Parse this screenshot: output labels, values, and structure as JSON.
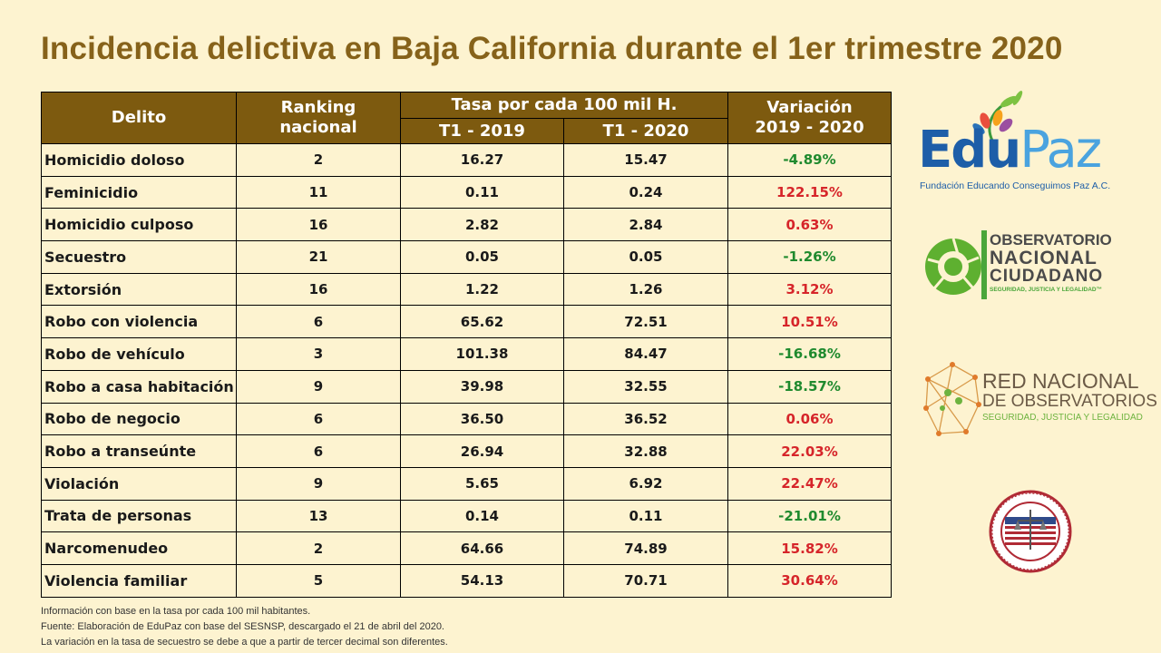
{
  "title": "Incidencia delictiva en Baja California durante el 1er trimestre 2020",
  "table": {
    "headers": {
      "delito": "Delito",
      "ranking_line1": "Ranking",
      "ranking_line2": "nacional",
      "tasa": "Tasa por cada 100 mil H.",
      "t1_2019": "T1 - 2019",
      "t1_2020": "T1 - 2020",
      "variacion_line1": "Variación",
      "variacion_line2": "2019 - 2020"
    },
    "rows": [
      {
        "delito": "Homicidio doloso",
        "ranking": "2",
        "t2019": "16.27",
        "t2020": "15.47",
        "variacion": "-4.89%"
      },
      {
        "delito": "Feminicidio",
        "ranking": "11",
        "t2019": "0.11",
        "t2020": "0.24",
        "variacion": "122.15%"
      },
      {
        "delito": "Homicidio culposo",
        "ranking": "16",
        "t2019": "2.82",
        "t2020": "2.84",
        "variacion": "0.63%"
      },
      {
        "delito": "Secuestro",
        "ranking": "21",
        "t2019": "0.05",
        "t2020": "0.05",
        "variacion": "-1.26%"
      },
      {
        "delito": "Extorsión",
        "ranking": "16",
        "t2019": "1.22",
        "t2020": "1.26",
        "variacion": "3.12%"
      },
      {
        "delito": "Robo con violencia",
        "ranking": "6",
        "t2019": "65.62",
        "t2020": "72.51",
        "variacion": "10.51%"
      },
      {
        "delito": "Robo de vehículo",
        "ranking": "3",
        "t2019": "101.38",
        "t2020": "84.47",
        "variacion": "-16.68%"
      },
      {
        "delito": "Robo a casa habitación",
        "ranking": "9",
        "t2019": "39.98",
        "t2020": "32.55",
        "variacion": "-18.57%"
      },
      {
        "delito": "Robo de negocio",
        "ranking": "6",
        "t2019": "36.50",
        "t2020": "36.52",
        "variacion": "0.06%"
      },
      {
        "delito": "Robo a transeúnte",
        "ranking": "6",
        "t2019": "26.94",
        "t2020": "32.88",
        "variacion": "22.03%"
      },
      {
        "delito": "Violación",
        "ranking": "9",
        "t2019": "5.65",
        "t2020": "6.92",
        "variacion": "22.47%"
      },
      {
        "delito": "Trata de personas",
        "ranking": "13",
        "t2019": "0.14",
        "t2020": "0.11",
        "variacion": "-21.01%"
      },
      {
        "delito": "Narcomenudeo",
        "ranking": "2",
        "t2019": "64.66",
        "t2020": "74.89",
        "variacion": "15.82%"
      },
      {
        "delito": "Violencia familiar",
        "ranking": "5",
        "t2019": "54.13",
        "t2020": "70.71",
        "variacion": "30.64%"
      }
    ]
  },
  "notes": [
    "Información con base en la tasa por cada 100 mil habitantes.",
    "Fuente: Elaboración de EduPaz con base del SESNSP, descargado el 21 de abril del 2020.",
    "La variación en la tasa de secuestro se debe a que a partir de tercer decimal son diferentes."
  ],
  "logos": {
    "edupaz_name_a": "Edu",
    "edupaz_name_b": "Paz",
    "edupaz_sub": "Fundación Educando Conseguimos Paz A.C.",
    "onc_line1": "OBSERVATORIO",
    "onc_line2": "NACIONAL",
    "onc_line3": "CIUDADANO",
    "onc_line4": "SEGURIDAD, JUSTICIA Y LEGALIDAD™",
    "red_line1": "RED NACIONAL",
    "red_line2": "DE OBSERVATORIOS",
    "red_line3": "SEGURIDAD, JUSTICIA Y LEGALIDAD"
  },
  "colors": {
    "background": "#fdf3d0",
    "title": "#86621a",
    "header_fill": "#7d5a0f",
    "negative": "#1f8a2e",
    "positive": "#d6252a"
  }
}
